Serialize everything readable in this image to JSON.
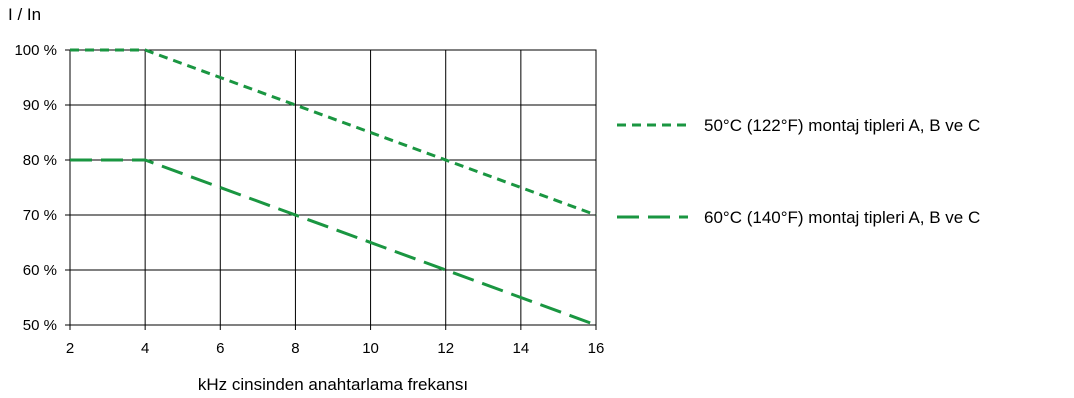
{
  "chart_data": {
    "type": "line",
    "title": "",
    "ylabel": "I / In",
    "xlabel": "kHz cinsinden anahtarlama frekansı",
    "xlim": [
      2,
      16
    ],
    "ylim": [
      50,
      100
    ],
    "x_ticks": [
      "2",
      "4",
      "6",
      "8",
      "10",
      "12",
      "14",
      "16"
    ],
    "y_ticks": [
      "100 %",
      "90 %",
      "80 %",
      "70 %",
      "60 %",
      "50 %"
    ],
    "grid": true,
    "legend_position": "right",
    "colors": {
      "series": "#1a9641"
    },
    "series": [
      {
        "name": "50°C (122°F) montaj tipleri A, B ve C",
        "style": "short-dash",
        "x": [
          2,
          4,
          16
        ],
        "y": [
          100,
          100,
          70
        ]
      },
      {
        "name": "60°C (140°F) montaj tipleri A, B ve C",
        "style": "long-dash",
        "x": [
          2,
          4,
          16
        ],
        "y": [
          80,
          80,
          50
        ]
      }
    ]
  }
}
